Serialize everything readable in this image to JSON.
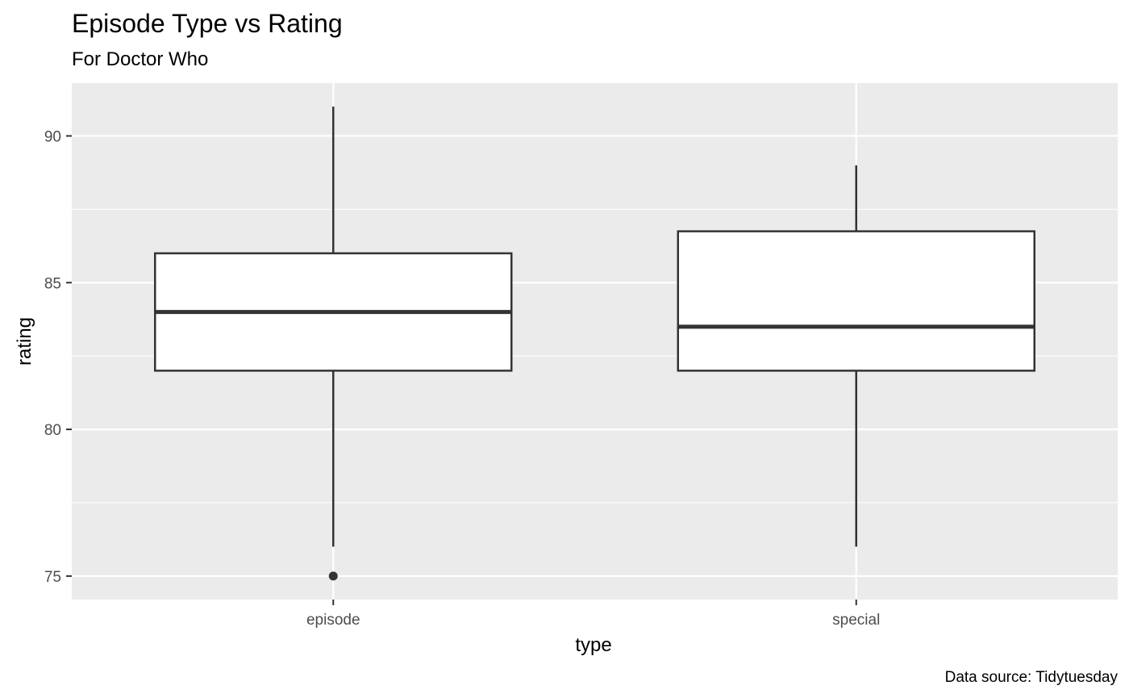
{
  "chart_data": {
    "type": "boxplot",
    "title": "Episode Type vs Rating",
    "subtitle": "For Doctor Who",
    "xlabel": "type",
    "ylabel": "rating",
    "caption": "Data source: Tidytuesday",
    "categories": [
      "episode",
      "special"
    ],
    "ylim": [
      74.2,
      91.8
    ],
    "yticks": [
      75,
      80,
      85,
      90
    ],
    "grid": true,
    "boxes": [
      {
        "category": "episode",
        "lower_whisker": 76,
        "q1": 82,
        "median": 84,
        "q3": 86,
        "upper_whisker": 91,
        "outliers": [
          75
        ]
      },
      {
        "category": "special",
        "lower_whisker": 76,
        "q1": 82,
        "median": 83.5,
        "q3": 86.75,
        "upper_whisker": 89,
        "outliers": []
      }
    ],
    "colors": {
      "panel": "#ebebeb",
      "grid": "#ffffff",
      "box_fill": "#ffffff",
      "box_line": "#333333"
    }
  }
}
